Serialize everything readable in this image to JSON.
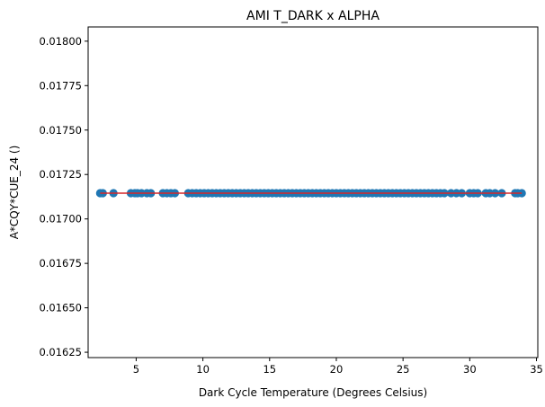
{
  "chart_data": {
    "type": "scatter",
    "title": "AMI T_DARK x ALPHA",
    "xlabel": "Dark Cycle Temperature (Degrees Celsius)",
    "ylabel": "A*CQY*CUE_24 ()",
    "xlim": [
      1.4,
      35.1
    ],
    "ylim": [
      0.01622,
      0.01808
    ],
    "xticks": [
      5,
      10,
      15,
      20,
      25,
      30,
      35
    ],
    "xtick_labels": [
      "5",
      "10",
      "15",
      "20",
      "25",
      "30",
      "35"
    ],
    "yticks": [
      0.01625,
      0.0165,
      0.01675,
      0.017,
      0.01725,
      0.0175,
      0.01775,
      0.018
    ],
    "ytick_labels": [
      "0.01625",
      "0.01650",
      "0.01675",
      "0.01700",
      "0.01725",
      "0.01750",
      "0.01775",
      "0.01800"
    ],
    "grid": false,
    "x": [
      2.3,
      2.5,
      3.3,
      4.6,
      4.9,
      5.1,
      5.4,
      5.8,
      6.1,
      7.0,
      7.3,
      7.6,
      7.9,
      8.9,
      9.2,
      9.5,
      9.8,
      10.1,
      10.4,
      10.7,
      11.0,
      11.3,
      11.6,
      11.9,
      12.2,
      12.5,
      12.8,
      13.1,
      13.4,
      13.7,
      14.0,
      14.3,
      14.6,
      14.9,
      15.2,
      15.5,
      15.8,
      16.1,
      16.4,
      16.7,
      17.0,
      17.3,
      17.6,
      17.9,
      18.2,
      18.5,
      18.8,
      19.1,
      19.4,
      19.7,
      20.0,
      20.3,
      20.6,
      20.9,
      21.2,
      21.5,
      21.8,
      22.1,
      22.4,
      22.7,
      23.0,
      23.3,
      23.6,
      23.9,
      24.2,
      24.5,
      24.8,
      25.1,
      25.4,
      25.7,
      26.0,
      26.3,
      26.6,
      26.9,
      27.2,
      27.5,
      27.8,
      28.1,
      28.6,
      29.0,
      29.4,
      30.0,
      30.3,
      30.6,
      31.2,
      31.5,
      31.9,
      32.4,
      33.4,
      33.6,
      33.9
    ],
    "y_constant": 0.017145,
    "series": [
      {
        "name": "",
        "type": "scatter",
        "color": "#1f77b4"
      },
      {
        "name": "",
        "type": "line",
        "color": "#d62728",
        "x": [
          2.3,
          33.9
        ],
        "y": [
          0.017145,
          0.017145
        ]
      }
    ]
  }
}
